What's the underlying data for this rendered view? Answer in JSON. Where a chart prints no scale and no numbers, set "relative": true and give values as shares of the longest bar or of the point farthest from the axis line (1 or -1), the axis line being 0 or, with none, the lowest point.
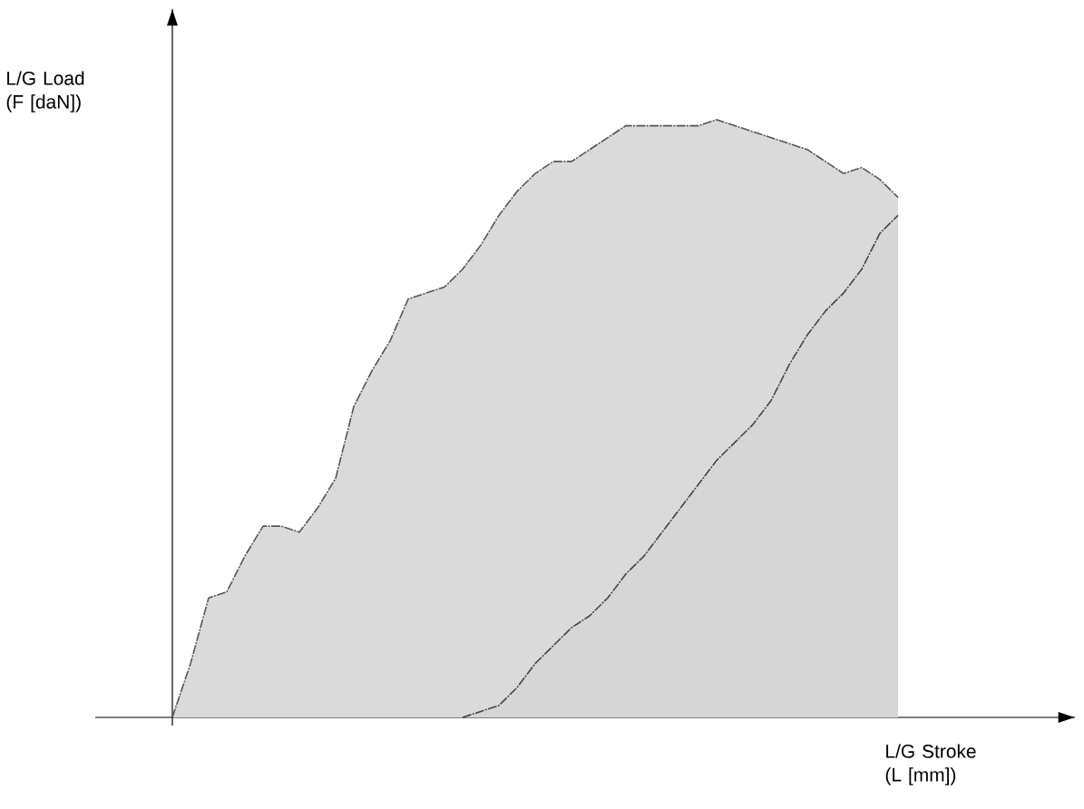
{
  "chart_data": {
    "type": "area",
    "relative": true,
    "xlabel": "L/G Stroke (L [mm])",
    "ylabel": "L/G Load (F [daN])",
    "line_style": "dashed",
    "categories": [
      null,
      null,
      null,
      null,
      null,
      null,
      null,
      null,
      null,
      null,
      null,
      null,
      null,
      null,
      null,
      null,
      null,
      null,
      null,
      null,
      null,
      null,
      null,
      null,
      null,
      null,
      null,
      null,
      null,
      null,
      null,
      null,
      null,
      null,
      null,
      null,
      null,
      null,
      null,
      null,
      null
    ],
    "series": [
      {
        "color": "#555555",
        "values": [
          0,
          0.09,
          0.2,
          0.21,
          0.27,
          0.32,
          0.32,
          0.31,
          0.35,
          0.4,
          0.52,
          0.58,
          0.63,
          0.7,
          0.71,
          0.72,
          0.75,
          0.79,
          0.84,
          0.88,
          0.91,
          0.93,
          0.93,
          0.95,
          0.97,
          0.99,
          0.99,
          0.99,
          0.99,
          0.99,
          1,
          0.99,
          0.98,
          0.97,
          0.96,
          0.95,
          0.93,
          0.91,
          0.92,
          0.9,
          0.87
        ]
      },
      {
        "color": "#444444",
        "values": [
          null,
          null,
          null,
          null,
          null,
          null,
          null,
          null,
          null,
          null,
          null,
          null,
          null,
          null,
          null,
          null,
          0,
          0.01,
          0.02,
          0.05,
          0.09,
          0.12,
          0.15,
          0.17,
          0.2,
          0.24,
          0.27,
          0.31,
          0.35,
          0.39,
          0.43,
          0.46,
          0.49,
          0.53,
          0.59,
          0.64,
          0.68,
          0.71,
          0.75,
          0.81,
          0.84
        ]
      }
    ]
  }
}
